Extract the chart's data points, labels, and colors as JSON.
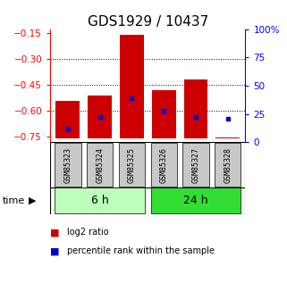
{
  "title": "GDS1929 / 10437",
  "samples": [
    "GSM85323",
    "GSM85324",
    "GSM85325",
    "GSM85326",
    "GSM85327",
    "GSM85328"
  ],
  "bar_bottom": -0.76,
  "bar_tops": [
    -0.54,
    -0.51,
    -0.16,
    -0.48,
    -0.42,
    -0.755
  ],
  "blue_dot_y": [
    -0.7,
    -0.635,
    -0.525,
    -0.6,
    -0.635,
    -0.645
  ],
  "ylim_left": [
    -0.78,
    -0.13
  ],
  "ylim_right": [
    0,
    100
  ],
  "yticks_left": [
    -0.75,
    -0.6,
    -0.45,
    -0.3,
    -0.15
  ],
  "yticks_right": [
    0,
    25,
    50,
    75,
    100
  ],
  "hlines": [
    -0.6,
    -0.45,
    -0.3
  ],
  "bar_color": "#cc0000",
  "dot_color": "#0000cc",
  "group_colors": [
    "#bbffbb",
    "#33dd33"
  ],
  "gray_bg": "#c8c8c8",
  "title_fontsize": 11,
  "tick_fontsize": 7.5,
  "time_label": "time",
  "legend_log2": "log2 ratio",
  "legend_pct": "percentile rank within the sample"
}
